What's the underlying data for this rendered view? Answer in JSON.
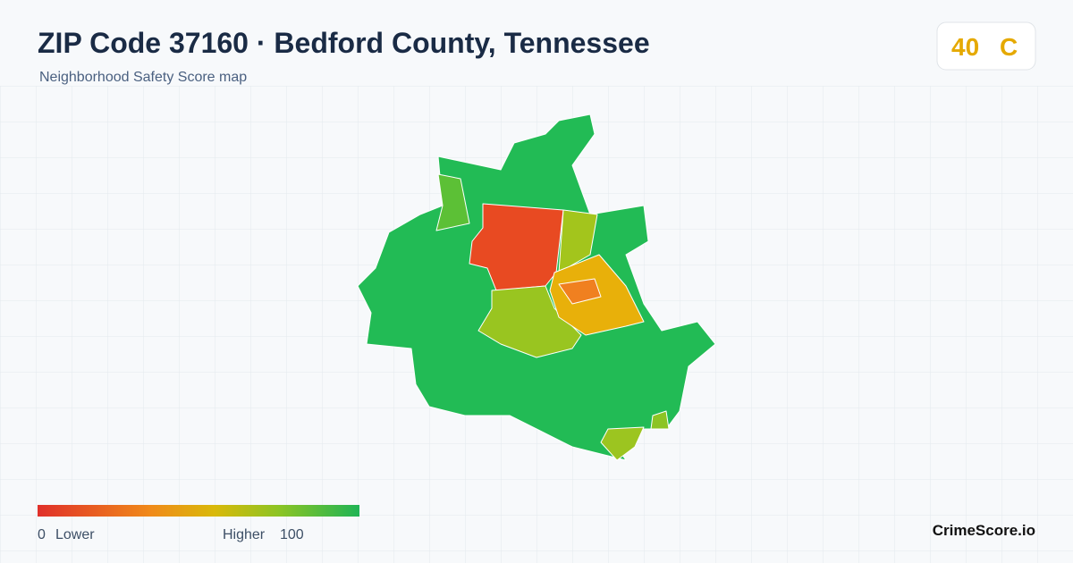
{
  "header": {
    "title": "ZIP Code 37160 · Bedford County, Tennessee",
    "subtitle": "Neighborhood Safety Score map"
  },
  "score": {
    "value": 40,
    "grade": "C"
  },
  "legend": {
    "min": 0,
    "min_label": "Lower",
    "max_label": "Higher",
    "max": 100
  },
  "brand": "CrimeScore.io"
}
